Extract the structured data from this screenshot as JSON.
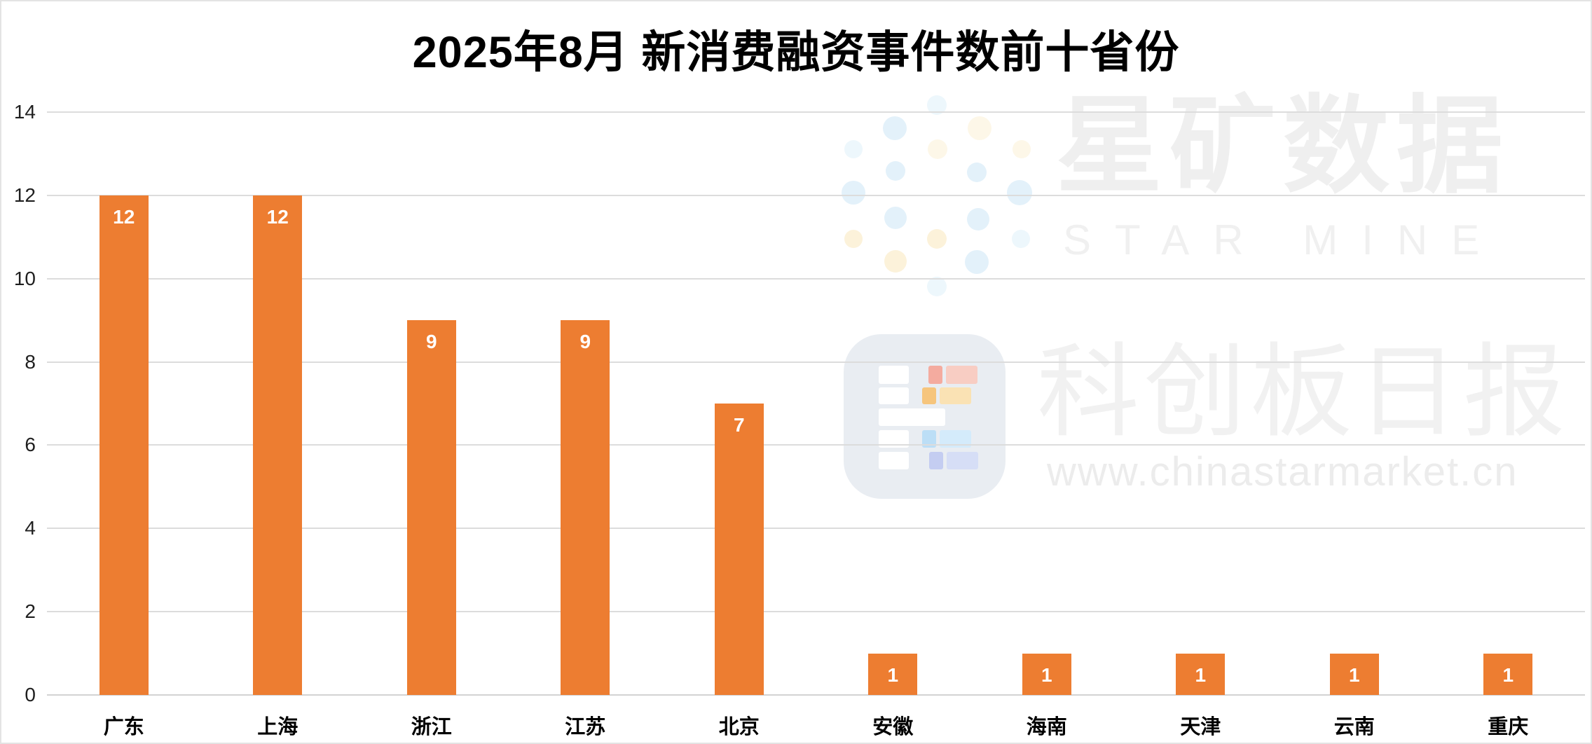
{
  "page": {
    "background": "#FFFFFF",
    "border_color": "#E3E3E3"
  },
  "chart_data": {
    "type": "bar",
    "title": "2025年8月 新消费融资事件数前十省份",
    "categories": [
      "广东",
      "上海",
      "浙江",
      "江苏",
      "北京",
      "安徽",
      "海南",
      "天津",
      "云南",
      "重庆"
    ],
    "values": [
      12,
      12,
      9,
      9,
      7,
      1,
      1,
      1,
      1,
      1
    ],
    "xlabel": "",
    "ylabel": "",
    "ylim": [
      0,
      14
    ],
    "ytick_step": 2,
    "ytick_labels": [
      "0",
      "2",
      "4",
      "6",
      "8",
      "10",
      "12",
      "14"
    ],
    "bar_color": "#ED7D31",
    "value_label_color": "#FFFFFF",
    "value_label_position": "inside-top",
    "grid": true,
    "gridline_color": "#DCDCDC",
    "axis_text_color": "#1F1F1F",
    "legend_position": "none"
  },
  "watermarks": {
    "star_mine_cn": "星矿数据",
    "star_mine_en": "STAR MINE",
    "kechuang_daily": "科创板日报",
    "website": "www.chinastarmarket.cn"
  }
}
